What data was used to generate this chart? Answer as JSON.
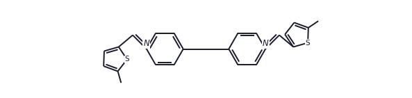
{
  "bg_color": "#ffffff",
  "line_color": "#1a1a2e",
  "line_width": 1.4,
  "font_size": 8.5,
  "figsize": [
    5.93,
    1.41
  ],
  "dpi": 100,
  "xlim": [
    -1.5,
    11.5
  ],
  "ylim": [
    -0.2,
    2.7
  ]
}
